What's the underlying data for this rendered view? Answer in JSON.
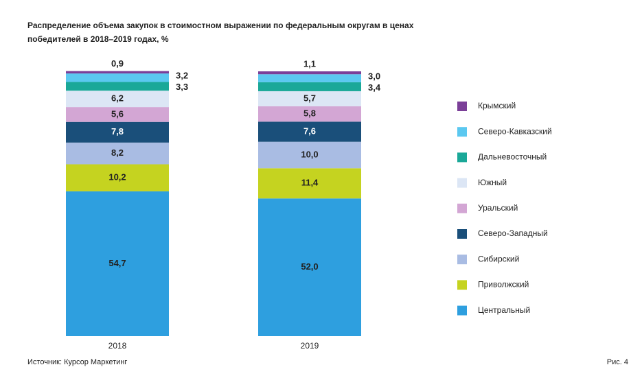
{
  "chart_data": {
    "type": "stacked_bar",
    "title": "Распределение объема закупок в стоимостном выражении по федеральным округам в ценах победителей в 2018–2019 годах, %",
    "source": "Источник: Курсор Маркетинг",
    "figure": "Рис. 4",
    "categories": [
      "2018",
      "2019"
    ],
    "series": [
      {
        "name": "Центральный",
        "color": "#2e9fdf",
        "values": [
          54.7,
          52.0
        ],
        "value_labels": [
          "54,7",
          "52,0"
        ]
      },
      {
        "name": "Приволжский",
        "color": "#c5d320",
        "values": [
          10.2,
          11.4
        ],
        "value_labels": [
          "10,2",
          "11,4"
        ]
      },
      {
        "name": "Сибирский",
        "color": "#a9bce3",
        "values": [
          8.2,
          10.0
        ],
        "value_labels": [
          "8,2",
          "10,0"
        ]
      },
      {
        "name": "Северо-Западный",
        "color": "#1a4f7a",
        "values": [
          7.8,
          7.6
        ],
        "value_labels": [
          "7,8",
          "7,6"
        ]
      },
      {
        "name": "Уральский",
        "color": "#d3a6d4",
        "values": [
          5.6,
          5.8
        ],
        "value_labels": [
          "5,6",
          "5,8"
        ]
      },
      {
        "name": "Южный",
        "color": "#dce6f5",
        "values": [
          6.2,
          5.7
        ],
        "value_labels": [
          "6,2",
          "5,7"
        ]
      },
      {
        "name": "Дальневосточный",
        "color": "#1aa898",
        "values": [
          3.3,
          3.4
        ],
        "value_labels": [
          "3,3",
          "3,4"
        ]
      },
      {
        "name": "Северо-Кавказский",
        "color": "#5bc8f0",
        "values": [
          3.2,
          3.0
        ],
        "value_labels": [
          "3,2",
          "3,0"
        ]
      },
      {
        "name": "Крымский",
        "color": "#7b3f98",
        "values": [
          0.9,
          1.1
        ],
        "value_labels": [
          "0,9",
          "1,1"
        ]
      }
    ]
  }
}
